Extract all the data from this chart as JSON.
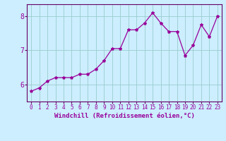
{
  "x": [
    0,
    1,
    2,
    3,
    4,
    5,
    6,
    7,
    8,
    9,
    10,
    11,
    12,
    13,
    14,
    15,
    16,
    17,
    18,
    19,
    20,
    21,
    22,
    23
  ],
  "y": [
    5.8,
    5.9,
    6.1,
    6.2,
    6.2,
    6.2,
    6.3,
    6.3,
    6.45,
    6.7,
    7.05,
    7.05,
    7.6,
    7.6,
    7.8,
    8.1,
    7.8,
    7.55,
    7.55,
    6.85,
    7.15,
    7.75,
    7.4,
    8.0
  ],
  "line_color": "#990099",
  "marker": "*",
  "marker_size": 3,
  "background_color": "#cceeff",
  "grid_color": "#99cccc",
  "xlabel": "Windchill (Refroidissement éolien,°C)",
  "tick_color": "#990099",
  "ylim": [
    5.5,
    8.35
  ],
  "yticks": [
    6,
    7,
    8
  ],
  "xlim": [
    -0.5,
    23.5
  ],
  "xticks": [
    0,
    1,
    2,
    3,
    4,
    5,
    6,
    7,
    8,
    9,
    10,
    11,
    12,
    13,
    14,
    15,
    16,
    17,
    18,
    19,
    20,
    21,
    22,
    23
  ],
  "spine_color": "#660066",
  "tick_fontsize": 5.5,
  "xlabel_fontsize": 6.5,
  "ytick_fontsize": 7
}
